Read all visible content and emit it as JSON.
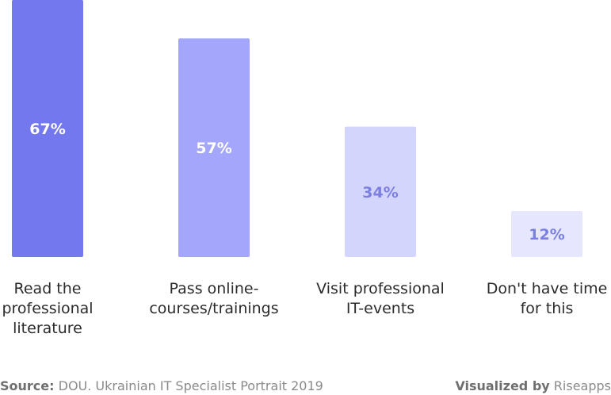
{
  "chart_data": {
    "type": "bar",
    "categories": [
      [
        "Read the",
        "professional",
        "literature"
      ],
      [
        "Pass online-",
        "courses/trainings"
      ],
      [
        "Visit professional",
        "IT-events"
      ],
      [
        "Don't have time",
        "for this"
      ]
    ],
    "values": [
      67,
      57,
      34,
      12
    ],
    "value_labels": [
      "67%",
      "57%",
      "34%",
      "12%"
    ],
    "unit": "%",
    "ylim": [
      0,
      67
    ],
    "grid": false,
    "colors": {
      "bars": [
        "#7478ef",
        "#a3a6fb",
        "#d3d5fd",
        "#e6e7fe"
      ],
      "value_labels": [
        "#ffffff",
        "#ffffff",
        "#7b7fe0",
        "#7b7fe0"
      ]
    }
  },
  "footer": {
    "source_label": "Source:",
    "source_text": "DOU. Ukrainian IT Specialist Portrait 2019",
    "visualized_label": "Visualized by",
    "visualized_text": "Riseapps"
  }
}
